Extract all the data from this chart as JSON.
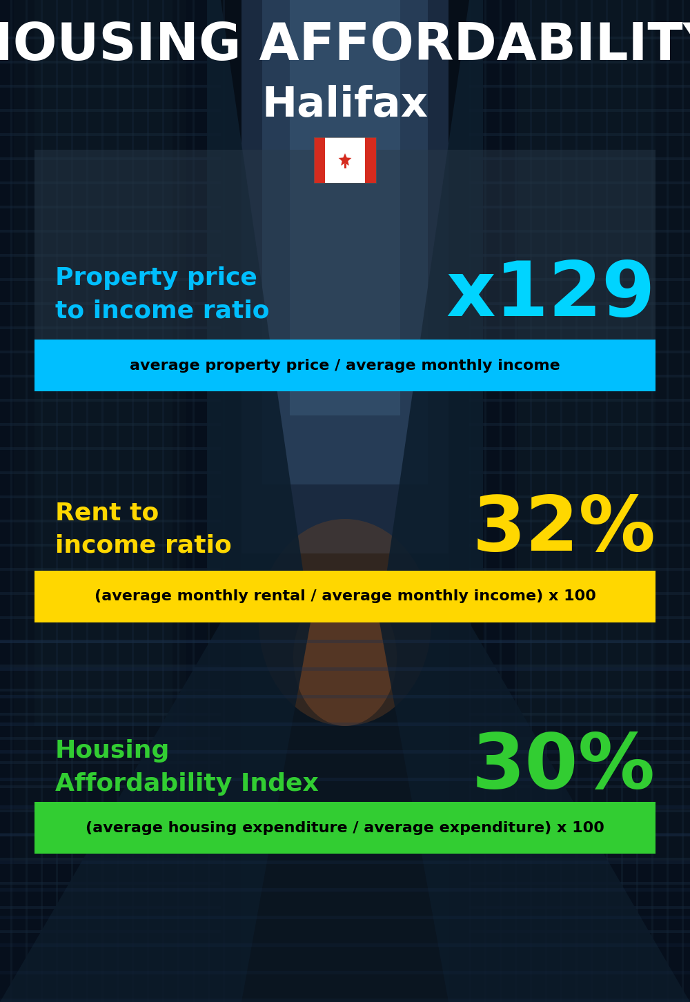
{
  "title_line1": "HOUSING AFFORDABILITY",
  "title_line2": "Halifax",
  "section1_label": "Property price\nto income ratio",
  "section1_value": "x129",
  "section1_sublabel": "average property price / average monthly income",
  "section1_label_color": "#00bfff",
  "section1_value_color": "#00d4ff",
  "section1_bg_color": "#00bfff",
  "section2_label": "Rent to\nincome ratio",
  "section2_value": "32%",
  "section2_sublabel": "(average monthly rental / average monthly income) x 100",
  "section2_label_color": "#FFD700",
  "section2_value_color": "#FFD700",
  "section2_bg_color": "#FFD700",
  "section3_label": "Housing\nAffordability Index",
  "section3_value": "30%",
  "section3_sublabel": "(average housing expenditure / average expenditure) x 100",
  "section3_label_color": "#32CD32",
  "section3_value_color": "#32CD32",
  "section3_bg_color": "#32CD32",
  "bg_color": "#0a1520",
  "title_color": "#ffffff",
  "subtitle_color": "#ffffff",
  "sublabel_text_color": "#000000",
  "title_fontsize": 54,
  "subtitle_fontsize": 44,
  "label_fontsize": 26,
  "value_fontsize": 80,
  "sublabel_fontsize": 16
}
